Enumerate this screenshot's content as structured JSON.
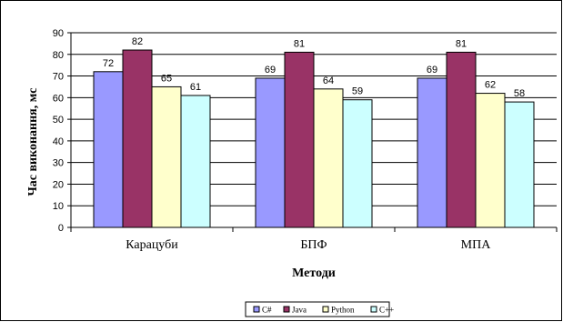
{
  "chart_data": {
    "type": "bar",
    "title": "",
    "xlabel": "Методи",
    "ylabel": "Час виконання, мс",
    "ylim": [
      0,
      90
    ],
    "yticks": [
      0,
      10,
      20,
      30,
      40,
      50,
      60,
      70,
      80,
      90
    ],
    "grid": true,
    "legend_position": "bottom",
    "categories": [
      "Карацуби",
      "БПФ",
      "МПА"
    ],
    "series": [
      {
        "name": "C#",
        "color": "#9999ff",
        "values": [
          72,
          69,
          69
        ]
      },
      {
        "name": "Java",
        "color": "#993366",
        "values": [
          82,
          81,
          81
        ]
      },
      {
        "name": "Python",
        "color": "#ffffcc",
        "values": [
          65,
          64,
          62
        ]
      },
      {
        "name": "C++",
        "color": "#ccffff",
        "values": [
          61,
          59,
          58
        ]
      }
    ]
  }
}
